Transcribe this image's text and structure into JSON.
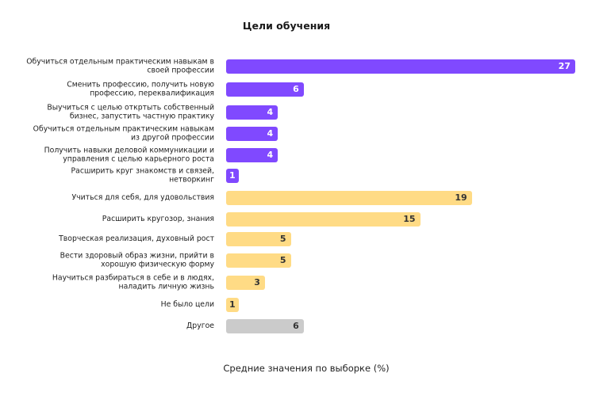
{
  "title": "Цели обучения",
  "footer": "Средние значения по выборке (%)",
  "colors": {
    "purple": "#8049ff",
    "yellow": "#ffdb85",
    "gray": "#cbcbcb"
  },
  "chart_data": {
    "type": "bar",
    "orientation": "horizontal",
    "title": "Цели обучения",
    "xlabel": "Средние значения по выборке (%)",
    "ylabel": "",
    "grid": false,
    "categories": [
      "Обучиться отдельным практическим навыкам в своей профессии",
      "Сменить профессию, получить новую профессию, переквалификация",
      "Выучиться с целью откртыть собственный бизнес, запустить частную практику",
      "Обучиться отдельным практическим навыкам из другой профессии",
      "Получить навыки деловой коммуникации и управления с целью карьерного роста",
      "Расширить круг знакомств и связей, нетворкинг",
      "Учиться для себя, для удовольствия",
      "Расширить кругозор, знания",
      "Творческая реализация, духовный рост",
      "Вести здоровый образ жизни, прийти в хорошую физическую форму",
      "Научиться разбираться в себе и в людях, наладить личную жизнь",
      "Не было цели",
      "Другое"
    ],
    "values": [
      27,
      6,
      4,
      4,
      4,
      1,
      19,
      15,
      5,
      5,
      3,
      1,
      6
    ],
    "groups": [
      "purple",
      "purple",
      "purple",
      "purple",
      "purple",
      "purple",
      "yellow",
      "yellow",
      "yellow",
      "yellow",
      "yellow",
      "yellow",
      "gray"
    ]
  },
  "rows": [
    {
      "l1": "Обучиться отдельным практическим навыкам в",
      "l2": "своей профессии",
      "value": "27"
    },
    {
      "l1": "Сменить профессию, получить новую",
      "l2": "профессию, переквалификация",
      "value": "6"
    },
    {
      "l1": "Выучиться с целью откртыть собственный",
      "l2": "бизнес, запустить частную практику",
      "value": "4"
    },
    {
      "l1": "Обучиться отдельным практическим навыкам",
      "l2": "из другой профессии",
      "value": "4"
    },
    {
      "l1": "Получить навыки деловой коммуникации и",
      "l2": "управления с целью карьерного роста",
      "value": "4"
    },
    {
      "l1": "Расширить круг знакомств и связей,",
      "l2": "нетворкинг",
      "value": "1"
    },
    {
      "l1": "Учиться для себя, для удовольствия",
      "l2": "",
      "value": "19"
    },
    {
      "l1": "Расширить кругозор, знания",
      "l2": "",
      "value": "15"
    },
    {
      "l1": "Творческая реализация, духовный рост",
      "l2": "",
      "value": "5"
    },
    {
      "l1": "Вести здоровый образ жизни, прийти в",
      "l2": "хорошую физическую форму",
      "value": "5"
    },
    {
      "l1": "Научиться разбираться в себе и в людях,",
      "l2": "наладить личную жизнь",
      "value": "3"
    },
    {
      "l1": "Не было цели",
      "l2": "",
      "value": "1"
    },
    {
      "l1": "Другое",
      "l2": "",
      "value": "6"
    }
  ]
}
